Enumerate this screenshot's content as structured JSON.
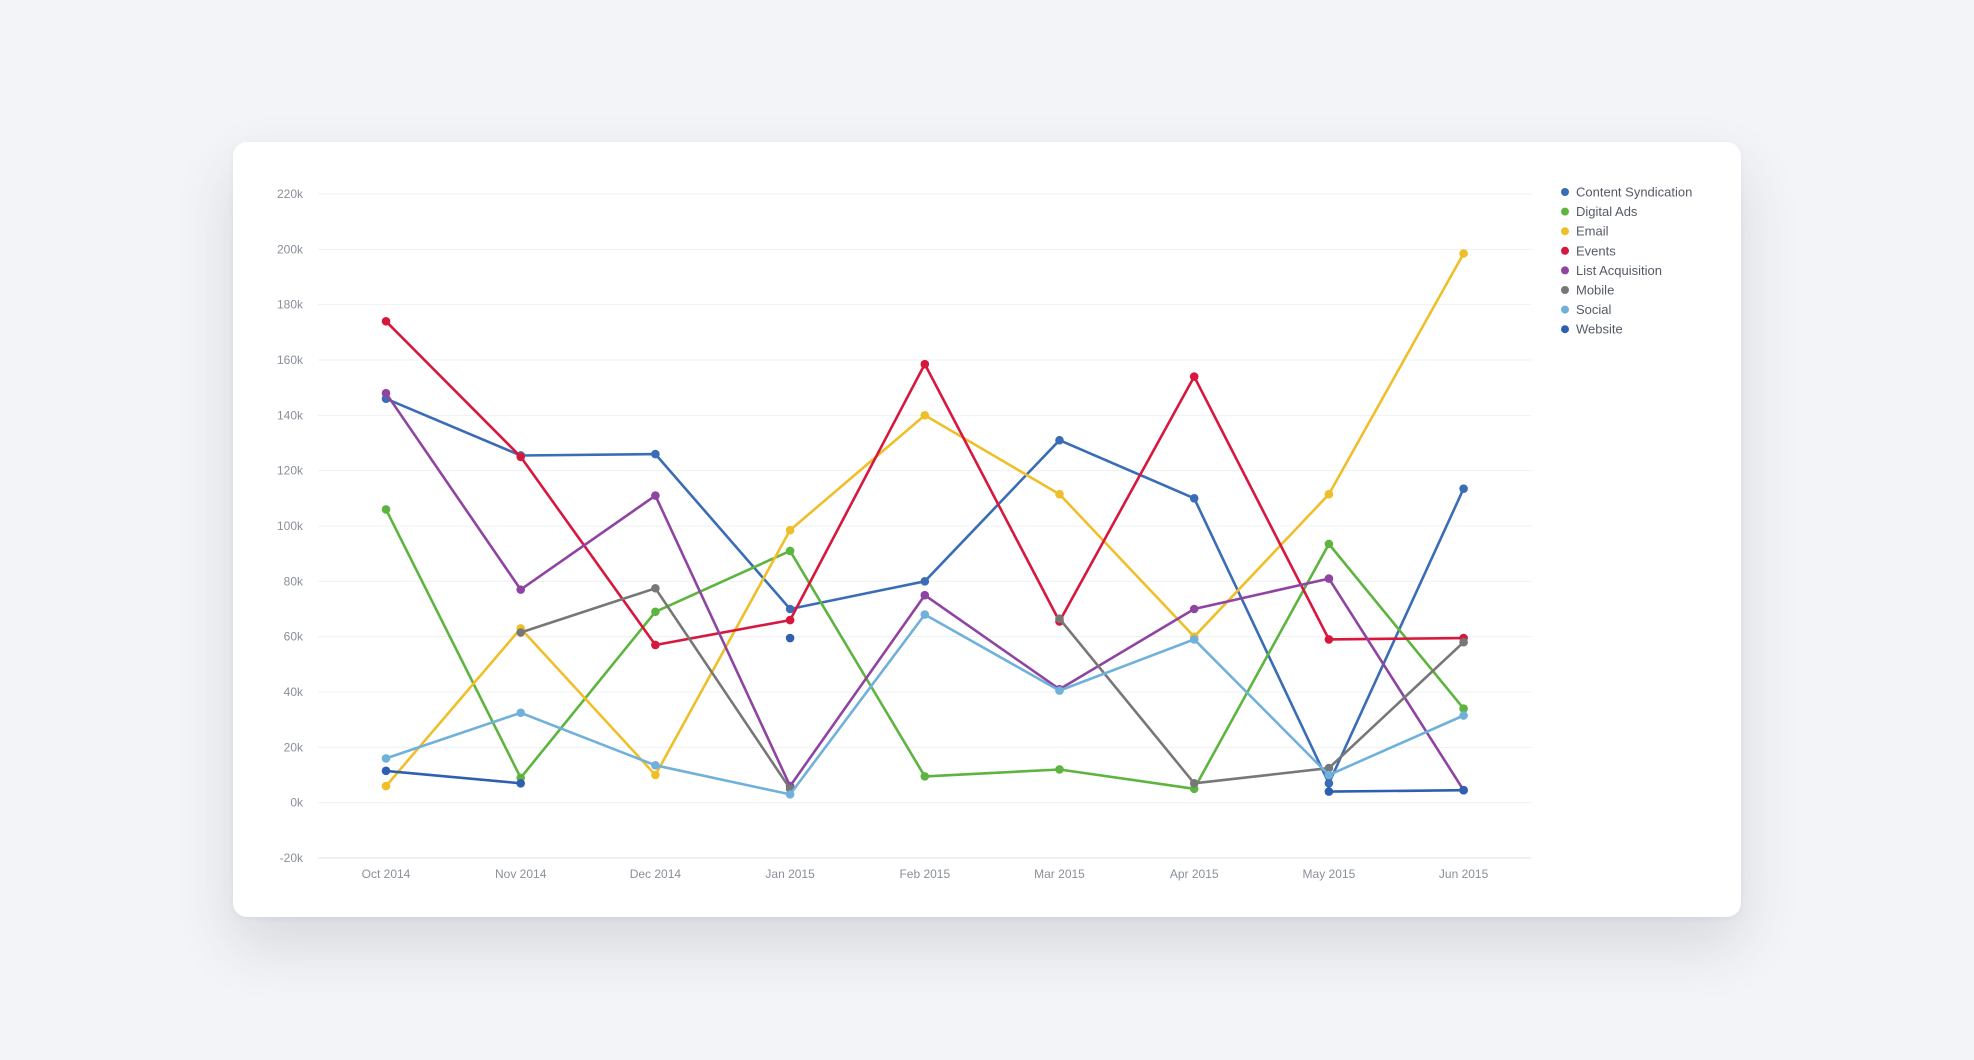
{
  "chart_data": {
    "type": "line",
    "categories": [
      "Oct 2014",
      "Nov 2014",
      "Dec 2014",
      "Jan 2015",
      "Feb 2015",
      "Mar 2015",
      "Apr 2015",
      "May 2015",
      "Jun 2015"
    ],
    "ylim": [
      -20000,
      220000
    ],
    "yticks": [
      -20000,
      0,
      20000,
      40000,
      60000,
      80000,
      100000,
      120000,
      140000,
      160000,
      180000,
      200000,
      220000
    ],
    "ytick_labels": [
      "-20k",
      "0k",
      "20k",
      "40k",
      "60k",
      "80k",
      "100k",
      "120k",
      "140k",
      "160k",
      "180k",
      "200k",
      "220k"
    ],
    "grid": true,
    "legend_position": "top-right",
    "series": [
      {
        "name": "Content Syndication",
        "color": "#3a6db5",
        "values": [
          146000,
          125500,
          126000,
          70000,
          80000,
          131000,
          110000,
          7000,
          113500
        ]
      },
      {
        "name": "Digital Ads",
        "color": "#5db43f",
        "values": [
          106000,
          9000,
          69000,
          91000,
          9500,
          12000,
          5000,
          93500,
          34000
        ]
      },
      {
        "name": "Email",
        "color": "#efbf2a",
        "values": [
          6000,
          63000,
          10000,
          98500,
          140000,
          111500,
          60000,
          111500,
          198500
        ]
      },
      {
        "name": "Events",
        "color": "#d7173d",
        "values": [
          174000,
          125000,
          57000,
          66000,
          158500,
          65500,
          154000,
          59000,
          59500
        ]
      },
      {
        "name": "List Acquisition",
        "color": "#8f44a1",
        "values": [
          148000,
          77000,
          111000,
          6000,
          75000,
          41000,
          70000,
          81000,
          4500
        ]
      },
      {
        "name": "Mobile",
        "color": "#777777",
        "values": [
          null,
          61500,
          77500,
          5000,
          null,
          66500,
          7000,
          12500,
          58000
        ]
      },
      {
        "name": "Social",
        "color": "#6fb1db",
        "values": [
          16000,
          32500,
          13500,
          3000,
          68000,
          40500,
          59000,
          10000,
          31500
        ]
      },
      {
        "name": "Website",
        "color": "#2f5fb0",
        "values": [
          11500,
          7000,
          null,
          59500,
          null,
          null,
          null,
          4000,
          4500
        ]
      }
    ]
  }
}
